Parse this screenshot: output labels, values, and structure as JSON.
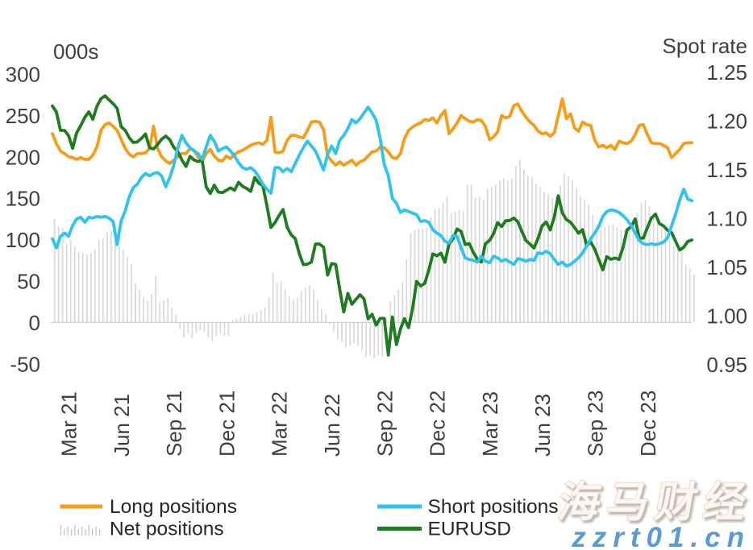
{
  "watermark": {
    "brand": "海马财经",
    "site": "zzrt01.cn"
  },
  "chart_data": {
    "type": "combo-line-bar",
    "left_axis": {
      "title": "000s",
      "ticks": [
        "300",
        "250",
        "200",
        "150",
        "100",
        "50",
        "0",
        "-50"
      ],
      "range": [
        -50,
        300
      ]
    },
    "right_axis": {
      "title": "Spot rate",
      "ticks": [
        "1.25",
        "1.20",
        "1.15",
        "1.10",
        "1.05",
        "1.00",
        "0.95"
      ],
      "range": [
        0.95,
        1.25
      ]
    },
    "x_ticks": [
      "Mar 21",
      "Jun 21",
      "Sep 21",
      "Dec 21",
      "Mar 22",
      "Jun 22",
      "Sep 22",
      "Dec 22",
      "Mar 23",
      "Jun 23",
      "Sep 23",
      "Dec 23"
    ],
    "legend": {
      "long": "Long positions",
      "net": "Net positions",
      "short": "Short positions",
      "eurusd": "EURUSD"
    },
    "colors": {
      "long": "#F79C19",
      "short": "#2FC3F0",
      "net": "#D8D8D8",
      "eurusd": "#1E7B1E",
      "axis_text": "#3F3F3F",
      "zero_line": "#D0D0D0",
      "legend_text": "#262626",
      "watermark_site": "#5B9BD5"
    },
    "series": [
      {
        "name": "Long positions",
        "type": "line",
        "axis": "left",
        "color": "#F79C19",
        "values": [
          228,
          216,
          207,
          204,
          200,
          199,
          197,
          199,
          197,
          197,
          202,
          212,
          232,
          239,
          241,
          237,
          232,
          221,
          210,
          203,
          200,
          204,
          204,
          205,
          210,
          237,
          210,
          200,
          195,
          192,
          196,
          200,
          204,
          204,
          210,
          208,
          200,
          194,
          204,
          209,
          201,
          196,
          195,
          201,
          198,
          203,
          206,
          208,
          211,
          214,
          216,
          217,
          215,
          220,
          248,
          206,
          205,
          207,
          220,
          226,
          226,
          224,
          223,
          232,
          242,
          243,
          242,
          233,
          201,
          195,
          190,
          194,
          190,
          193,
          196,
          190,
          194,
          196,
          201,
          206,
          207,
          212,
          211,
          206,
          199,
          198,
          204,
          222,
          232,
          236,
          239,
          241,
          245,
          244,
          247,
          241,
          250,
          256,
          228,
          234,
          241,
          250,
          246,
          243,
          242,
          245,
          244,
          237,
          221,
          224,
          230,
          250,
          247,
          249,
          262,
          264,
          255,
          248,
          242,
          238,
          231,
          228,
          229,
          225,
          229,
          250,
          270,
          246,
          252,
          235,
          231,
          242,
          239,
          238,
          220,
          212,
          214,
          211,
          214,
          209,
          219,
          217,
          216,
          219,
          227,
          238,
          239,
          227,
          217,
          216,
          216,
          214,
          211,
          199,
          204,
          209,
          216,
          217,
          217
        ]
      },
      {
        "name": "Short positions",
        "type": "line",
        "axis": "left",
        "color": "#2FC3F0",
        "values": [
          101,
          90,
          104,
          108,
          104,
          117,
          125,
          127,
          121,
          127,
          126,
          128,
          127,
          128,
          126,
          122,
          94,
          123,
          135,
          152,
          163,
          167,
          175,
          180,
          177,
          180,
          181,
          177,
          164,
          175,
          190,
          211,
          226,
          217,
          211,
          207,
          204,
          197,
          212,
          226,
          219,
          207,
          210,
          212,
          207,
          201,
          193,
          187,
          185,
          187,
          183,
          176,
          167,
          161,
          156,
          187,
          187,
          182,
          186,
          182,
          192,
          202,
          211,
          219,
          213,
          207,
          196,
          184,
          203,
          213,
          204,
          220,
          226,
          234,
          245,
          241,
          246,
          253,
          260,
          253,
          244,
          222,
          191,
          177,
          150,
          144,
          133,
          136,
          134,
          132,
          130,
          122,
          123,
          121,
          112,
          108,
          105,
          98,
          96,
          105,
          104,
          90,
          78,
          76,
          75,
          73,
          80,
          74,
          72,
          80,
          78,
          74,
          76,
          73,
          70,
          77,
          76,
          74,
          76,
          75,
          84,
          83,
          86,
          83,
          76,
          70,
          73,
          68,
          70,
          74,
          78,
          84,
          92,
          101,
          108,
          116,
          128,
          134,
          136,
          135,
          133,
          129,
          124,
          117,
          108,
          99,
          95,
          94,
          95,
          94,
          95,
          97,
          102,
          117,
          131,
          148,
          161,
          149,
          147
        ]
      },
      {
        "name": "Net positions",
        "type": "bar",
        "axis": "left",
        "color": "#D8D8D8",
        "values": [
          125,
          116,
          114,
          95,
          100,
          92,
          85,
          83,
          82,
          84,
          88,
          99,
          102,
          109,
          110,
          101,
          93,
          88,
          79,
          70,
          48,
          40,
          30,
          26,
          34,
          56,
          25,
          27,
          29,
          18,
          9,
          -8,
          -18,
          -13,
          -19,
          -12,
          -9,
          -11,
          -18,
          -23,
          -16,
          -13,
          -17,
          -16,
          3,
          5,
          7,
          9,
          10,
          10,
          12,
          15,
          18,
          30,
          60,
          48,
          50,
          40,
          32,
          28,
          30,
          38,
          42,
          45,
          40,
          28,
          16,
          10,
          -2,
          -12,
          -20,
          -24,
          -30,
          -28,
          -25,
          -28,
          -34,
          -42,
          -40,
          -43,
          -40,
          -41,
          5,
          25,
          33,
          40,
          49,
          76,
          108,
          111,
          113,
          113,
          114,
          127,
          137,
          138,
          145,
          152,
          132,
          134,
          136,
          134,
          166,
          166,
          151,
          152,
          148,
          161,
          164,
          166,
          172,
          174,
          171,
          174,
          189,
          197,
          185,
          177,
          176,
          168,
          164,
          158,
          155,
          150,
          153,
          165,
          180,
          177,
          172,
          162,
          152,
          148,
          142,
          130,
          118,
          112,
          115,
          118,
          118,
          115,
          112,
          112,
          115,
          120,
          132,
          145,
          148,
          140,
          128,
          122,
          118,
          110,
          100,
          92,
          88,
          85,
          70,
          65,
          58
        ]
      },
      {
        "name": "EURUSD",
        "type": "line",
        "axis": "right",
        "color": "#1E7B1E",
        "values": [
          1.215,
          1.2088,
          1.19,
          1.1899,
          1.1845,
          1.1716,
          1.1874,
          1.1948,
          1.2034,
          1.209,
          1.2013,
          1.2147,
          1.2225,
          1.2254,
          1.2213,
          1.2174,
          1.2126,
          1.1938,
          1.1899,
          1.1823,
          1.1775,
          1.1782,
          1.1817,
          1.1863,
          1.1722,
          1.1709,
          1.1755,
          1.181,
          1.1841,
          1.1805,
          1.1725,
          1.1683,
          1.1597,
          1.153,
          1.1633,
          1.1596,
          1.158,
          1.1593,
          1.132,
          1.1251,
          1.1339,
          1.1267,
          1.126,
          1.1286,
          1.131,
          1.1285,
          1.1367,
          1.1326,
          1.1303,
          1.1274,
          1.1417,
          1.1358,
          1.1334,
          1.1125,
          1.0903,
          1.0954,
          1.1026,
          1.1088,
          1.0905,
          1.0828,
          1.0789,
          1.0637,
          1.0522,
          1.0527,
          1.0549,
          1.0734,
          1.0734,
          1.0702,
          1.0415,
          1.0533,
          1.0524,
          1.0266,
          1.0036,
          1.0227,
          1.0115,
          1.0166,
          1.0213,
          1.0171,
          0.9966,
          1.0012,
          0.9902,
          0.997,
          0.997,
          0.9594,
          0.9984,
          0.9702,
          0.986,
          0.9969,
          0.9875,
          1.0074,
          1.035,
          1.0303,
          1.0329,
          1.0467,
          1.0632,
          1.0612,
          1.064,
          1.0546,
          1.0734,
          1.0788,
          1.0887,
          1.0863,
          1.0729,
          1.0738,
          1.0647,
          1.0578,
          1.0549,
          1.0736,
          1.077,
          1.084,
          1.0953,
          1.0912,
          1.0972,
          1.0975,
          1.1,
          1.0962,
          1.0863,
          1.077,
          1.0732,
          1.0694,
          1.0792,
          1.0919,
          1.096,
          1.0878,
          1.1009,
          1.1228,
          1.1054,
          1.0984,
          1.0957,
          1.0903,
          1.0845,
          1.0881,
          1.0722,
          1.0753,
          1.068,
          1.0572,
          1.0468,
          1.0604,
          1.0577,
          1.059,
          1.0576,
          1.07,
          1.0879,
          1.0911,
          1.0992,
          1.0794,
          1.0793,
          1.09,
          1.1,
          1.1041,
          1.0942,
          1.092,
          1.0875,
          1.085,
          1.076,
          1.0672,
          1.07,
          1.076,
          1.0775
        ]
      }
    ]
  }
}
